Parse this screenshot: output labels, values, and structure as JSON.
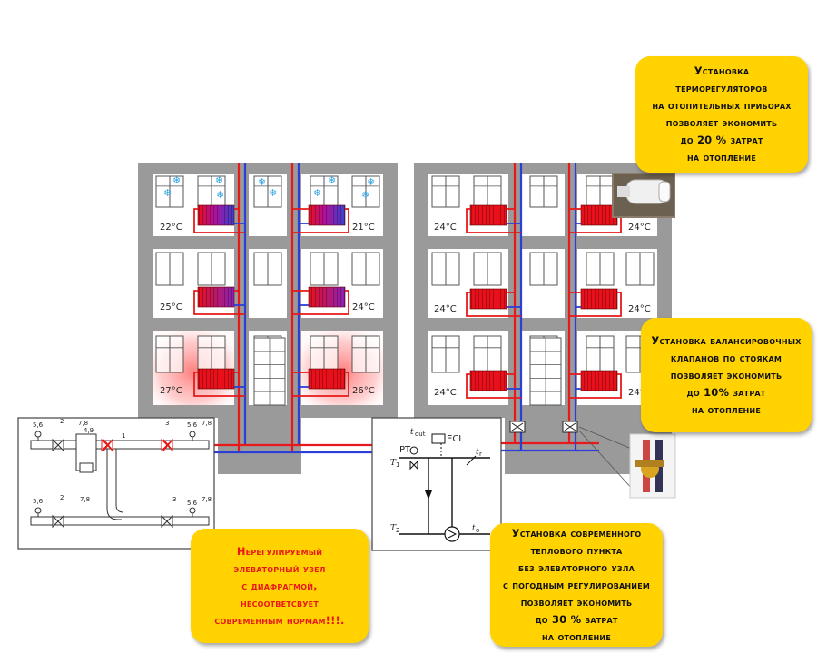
{
  "callouts": {
    "thermostat": {
      "lines": [
        "Установка",
        "терморегуляторов",
        "на отопительных приборах",
        "позволяет экономить",
        "до 20 % затрат",
        "на отопление"
      ]
    },
    "balancing": {
      "lines": [
        "Установка балансировочных",
        "клапанов по стоякам",
        "позволяет экономить",
        "до 10% затрат",
        "на отопление"
      ]
    },
    "heating_point": {
      "lines": [
        "Установка современного",
        "теплового пункта",
        "без элеваторного узла",
        "с погодным регулированием",
        "позволяет экономить",
        "до 30 % затрат",
        "на отопление"
      ]
    },
    "elevator": {
      "lines": [
        "Нерегулируемый",
        "элеваторный узел",
        "с диафрагмой,",
        "несоответсвует",
        "современным нормам!!!."
      ]
    }
  },
  "temperatures": {
    "left_building": {
      "floor3_left": "22°C",
      "floor3_right": "21°C",
      "floor2_left": "25°C",
      "floor2_right": "24°C",
      "floor1_left": "27°C",
      "floor1_right": "26°C"
    },
    "right_building": {
      "floor3_left": "24°C",
      "floor3_right": "24°C",
      "floor2_left": "24°C",
      "floor2_right": "24°C",
      "floor1_left": "24°C",
      "floor1_right": "24°C"
    }
  },
  "elevator_diagram": {
    "labels_top": [
      "5,6",
      "2",
      "7,8",
      "4,9",
      "1",
      "3",
      "5,6",
      "7,8"
    ],
    "labels_bottom": [
      "5,6",
      "2",
      "7,8",
      "3",
      "5,6",
      "7,8"
    ]
  },
  "heating_point_diagram": {
    "t_out": "t",
    "t_out_sub": "out",
    "ecl": "ECL",
    "rt": "PT",
    "t1": "T",
    "t1_sub": "1",
    "t2": "T",
    "t2_sub": "2",
    "tr": "t",
    "tr_sub": "r",
    "to": "t",
    "to_sub": "o"
  },
  "colors": {
    "callout_bg": "#ffd200",
    "supply_pipe": "#e8191a",
    "return_pipe": "#2b3fd6",
    "wall": "#9a9a9a",
    "radiator_hot": "#e8101a",
    "radiator_cold": "#3a3fd0"
  }
}
